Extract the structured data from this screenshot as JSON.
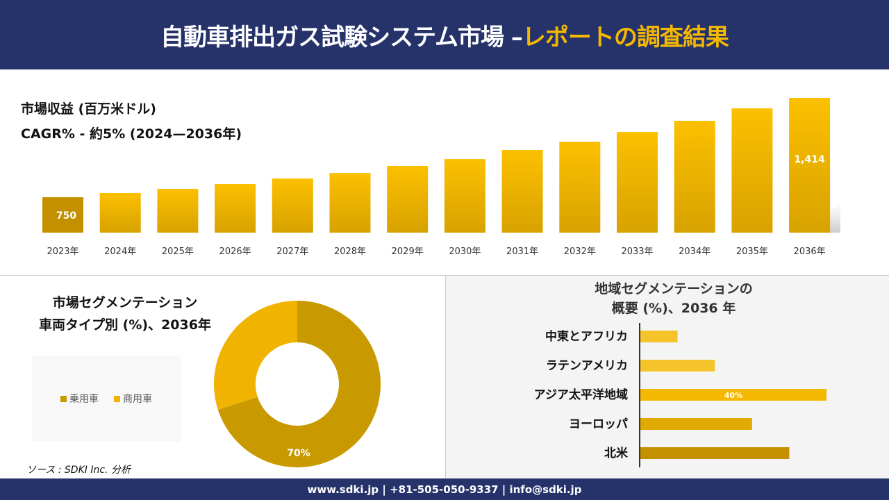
{
  "header": {
    "title_main": "自動車排出ガス試験システム市場 –",
    "title_accent": "レポートの調査結果"
  },
  "colors": {
    "header_bg": "#26336b",
    "accent": "#f5b800",
    "bar": "#f0b400",
    "bar_dark": "#c49000",
    "passenger": "#c89a00",
    "commercial": "#f0b400"
  },
  "chart_data": [
    {
      "type": "bar",
      "title": "市場収益 (百万米ドル)",
      "subtitle": "CAGR% - 約5% (2024—2036年)",
      "categories": [
        "2023年",
        "2024年",
        "2025年",
        "2026年",
        "2027年",
        "2028年",
        "2029年",
        "2030年",
        "2031年",
        "2032年",
        "2033年",
        "2034年",
        "2035年",
        "2036年"
      ],
      "values": [
        750,
        778,
        806,
        838,
        875,
        912,
        959,
        1005,
        1066,
        1121,
        1186,
        1261,
        1344,
        1414
      ],
      "data_labels": {
        "0": "750",
        "13": "1,414"
      }
    },
    {
      "type": "pie",
      "title": "市場セグメンテーション 車両タイプ別 (%)、2036年",
      "title_lines": [
        "市場セグメンテーション",
        "車両タイプ別 (%)、2036年"
      ],
      "labels": [
        "乗用車",
        "商用車"
      ],
      "values": [
        70,
        30
      ],
      "data_label": "70%",
      "legend": "left"
    },
    {
      "type": "bar",
      "orientation": "horizontal",
      "title_lines": [
        "地域セグメンテーションの",
        "概要 (%)、2036 年"
      ],
      "categories": [
        "中東とアフリカ",
        "ラテンアメリカ",
        "アジア太平洋地域",
        "ヨーロッパ",
        "北米"
      ],
      "values": [
        8,
        16,
        40,
        24,
        32
      ],
      "data_label": "40%",
      "colors": [
        "#f5c32a",
        "#f5c32a",
        "#f5b800",
        "#e0aa00",
        "#c49000"
      ]
    }
  ],
  "source": "ソース : SDKI Inc. 分析",
  "footer": "www.sdki.jp | +81-505-050-9337 | info@sdki.jp"
}
